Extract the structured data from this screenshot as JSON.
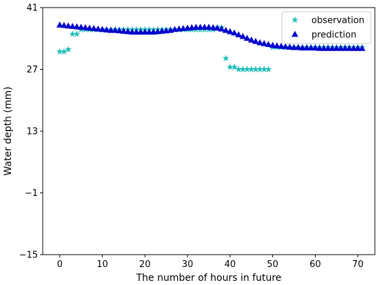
{
  "chart_data": {
    "type": "scatter",
    "title": "",
    "xlabel": "The number of hours in future",
    "ylabel": "Water depth (mm)",
    "xlim": [
      -4,
      74
    ],
    "ylim": [
      -15,
      41
    ],
    "xticks": [
      0,
      10,
      20,
      30,
      40,
      50,
      60,
      70
    ],
    "yticks": [
      -15,
      -1,
      13,
      27,
      41
    ],
    "grid": false,
    "legend_position": "top-right",
    "series": [
      {
        "name": "observation",
        "marker": "star",
        "color": "#1fbfb8",
        "x": [
          0,
          1,
          2,
          3,
          4,
          5,
          6,
          7,
          8,
          9,
          10,
          11,
          12,
          13,
          14,
          15,
          16,
          17,
          18,
          19,
          20,
          21,
          22,
          23,
          24,
          25,
          26,
          27,
          28,
          29,
          30,
          31,
          32,
          33,
          34,
          35,
          36,
          37,
          38,
          39,
          40,
          41,
          42,
          43,
          44,
          45,
          46,
          47,
          48,
          49,
          50,
          51,
          52,
          53,
          54,
          55,
          56,
          57,
          58,
          59,
          60,
          61,
          62,
          63,
          64,
          65,
          66,
          67,
          68,
          69,
          70,
          71
        ],
        "y": [
          31,
          31,
          31.5,
          35,
          35,
          36,
          36,
          36,
          36,
          36,
          36,
          36,
          36,
          36,
          36,
          36,
          36,
          36,
          36,
          36,
          36,
          36,
          36,
          36,
          36,
          36,
          36,
          36,
          36,
          36,
          36,
          36,
          36,
          36,
          36,
          36,
          36,
          36.5,
          36.5,
          29.5,
          27.5,
          27.5,
          27,
          27,
          27,
          27,
          27,
          27,
          27,
          27,
          32,
          32,
          32,
          32,
          32,
          32,
          32,
          32,
          32,
          32,
          32,
          32,
          32,
          32,
          32,
          32,
          32,
          32,
          32,
          32,
          32,
          32
        ]
      },
      {
        "name": "prediction",
        "marker": "triangle",
        "color": "#0000cc",
        "x": [
          0,
          1,
          2,
          3,
          4,
          5,
          6,
          7,
          8,
          9,
          10,
          11,
          12,
          13,
          14,
          15,
          16,
          17,
          18,
          19,
          20,
          21,
          22,
          23,
          24,
          25,
          26,
          27,
          28,
          29,
          30,
          31,
          32,
          33,
          34,
          35,
          36,
          37,
          38,
          39,
          40,
          41,
          42,
          43,
          44,
          45,
          46,
          47,
          48,
          49,
          50,
          51,
          52,
          53,
          54,
          55,
          56,
          57,
          58,
          59,
          60,
          61,
          62,
          63,
          64,
          65,
          66,
          67,
          68,
          69,
          70,
          71
        ],
        "y": [
          37,
          36.9,
          36.8,
          36.7,
          36.6,
          36.5,
          36.4,
          36.3,
          36.2,
          36.1,
          36,
          35.9,
          35.8,
          35.8,
          35.7,
          35.6,
          35.5,
          35.4,
          35.4,
          35.4,
          35.4,
          35.4,
          35.4,
          35.5,
          35.6,
          35.7,
          35.8,
          36,
          36.1,
          36.2,
          36.3,
          36.4,
          36.5,
          36.5,
          36.5,
          36.5,
          36.4,
          36.3,
          36.1,
          35.8,
          35.5,
          35.2,
          34.8,
          34.4,
          34,
          33.6,
          33.3,
          33,
          32.8,
          32.6,
          32.4,
          32.3,
          32.2,
          32.1,
          32,
          31.9,
          31.9,
          31.8,
          31.8,
          31.8,
          31.8,
          31.7,
          31.7,
          31.7,
          31.7,
          31.7,
          31.7,
          31.7,
          31.7,
          31.7,
          31.7,
          31.7
        ]
      }
    ]
  }
}
